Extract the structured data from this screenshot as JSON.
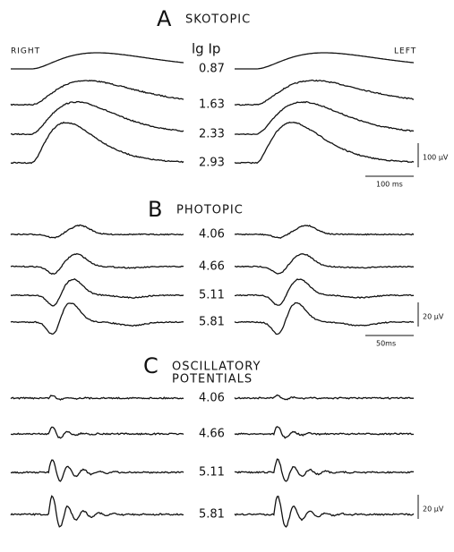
{
  "header": {
    "left_label": "RIGHT",
    "center_label": "lg Ip",
    "right_label": "LEFT"
  },
  "panels": [
    {
      "letter": "A",
      "title": [
        "SKOTOPIC"
      ],
      "intensities": [
        0.87,
        1.63,
        2.33,
        2.93
      ],
      "scale": {
        "amplitude": "100 µV",
        "time": "100 ms"
      }
    },
    {
      "letter": "B",
      "title": [
        "PHOTOPIC"
      ],
      "intensities": [
        4.06,
        4.66,
        5.11,
        5.81
      ],
      "scale": {
        "amplitude": "20 µV",
        "time": "50ms"
      }
    },
    {
      "letter": "C",
      "title": [
        "OSCILLATORY",
        "POTENTIALS"
      ],
      "intensities": [
        4.06,
        4.66,
        5.11,
        5.81
      ],
      "scale": {
        "amplitude": "20 µV"
      }
    }
  ]
}
